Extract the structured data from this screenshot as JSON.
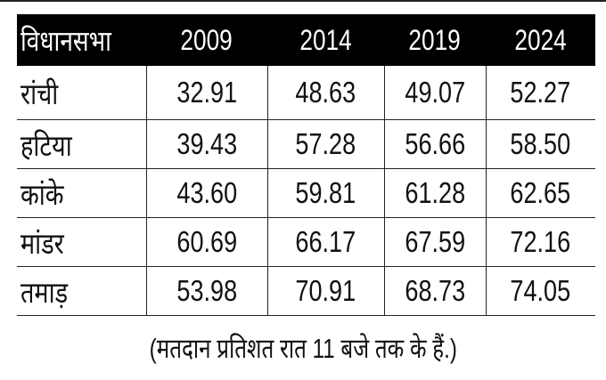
{
  "table": {
    "headers": [
      "विधानसभा",
      "2009",
      "2014",
      "2019",
      "2024"
    ],
    "rows": [
      [
        "रांची",
        "32.91",
        "48.63",
        "49.07",
        "52.27"
      ],
      [
        "हटिया",
        "39.43",
        "57.28",
        "56.66",
        "58.50"
      ],
      [
        "कांके",
        "43.60",
        "59.81",
        "61.28",
        "62.65"
      ],
      [
        "मांडर",
        "60.69",
        "66.17",
        "67.59",
        "72.16"
      ],
      [
        "तमाड़",
        "53.98",
        "70.91",
        "68.73",
        "74.05"
      ]
    ]
  },
  "footnote": "(मतदान प्रतिशत रात 11 बजे तक के हैं.)"
}
